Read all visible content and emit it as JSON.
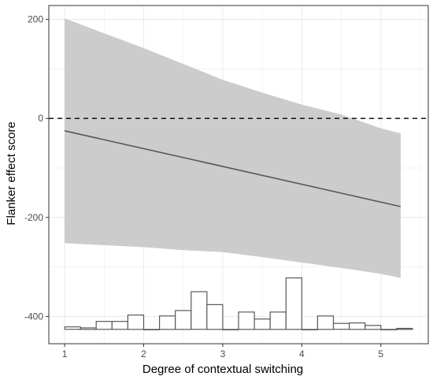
{
  "chart_data": {
    "type": "line",
    "xlabel": "Degree of contextual switching",
    "ylabel": "Flanker effect score",
    "xlim": [
      0.8,
      5.6
    ],
    "ylim": [
      -455,
      228
    ],
    "x_ticks": [
      1,
      2,
      3,
      4,
      5
    ],
    "y_ticks": [
      200,
      0,
      -200,
      -400
    ],
    "grid": true,
    "reference_line": {
      "y": 0,
      "style": "dashed"
    },
    "fit_line": {
      "x": [
        1.0,
        5.25
      ],
      "y": [
        -25,
        -178
      ]
    },
    "confidence_band": {
      "x": [
        1.0,
        1.5,
        2.0,
        2.5,
        3.0,
        3.5,
        4.0,
        4.5,
        5.0,
        5.25
      ],
      "upper": [
        202,
        172,
        142,
        110,
        78,
        52,
        28,
        8,
        -20,
        -30
      ],
      "lower": [
        -252,
        -256,
        -260,
        -266,
        -270,
        -280,
        -291,
        -302,
        -314,
        -322
      ]
    },
    "histogram": {
      "baseline": -426,
      "bin_width": 0.2,
      "bins": [
        {
          "x0": 1.0,
          "top": -421
        },
        {
          "x0": 1.2,
          "top": -423
        },
        {
          "x0": 1.4,
          "top": -410
        },
        {
          "x0": 1.6,
          "top": -410
        },
        {
          "x0": 1.8,
          "top": -397
        },
        {
          "x0": 2.0,
          "top": -426
        },
        {
          "x0": 2.2,
          "top": -399
        },
        {
          "x0": 2.4,
          "top": -388
        },
        {
          "x0": 2.6,
          "top": -350
        },
        {
          "x0": 2.8,
          "top": -376
        },
        {
          "x0": 3.0,
          "top": -426
        },
        {
          "x0": 3.2,
          "top": -391
        },
        {
          "x0": 3.4,
          "top": -405
        },
        {
          "x0": 3.6,
          "top": -391
        },
        {
          "x0": 3.8,
          "top": -322
        },
        {
          "x0": 4.0,
          "top": -426
        },
        {
          "x0": 4.2,
          "top": -399
        },
        {
          "x0": 4.4,
          "top": -414
        },
        {
          "x0": 4.6,
          "top": -413
        },
        {
          "x0": 4.8,
          "top": -418
        },
        {
          "x0": 5.0,
          "top": -426
        },
        {
          "x0": 5.2,
          "top": -424
        }
      ]
    },
    "colors": {
      "band": "#cccccc",
      "line": "#595959",
      "grid": "#ebebeb",
      "panel_border": "#333333",
      "bar_fill": "#ffffff",
      "bar_stroke": "#595959",
      "ref_line": "#000000"
    }
  }
}
